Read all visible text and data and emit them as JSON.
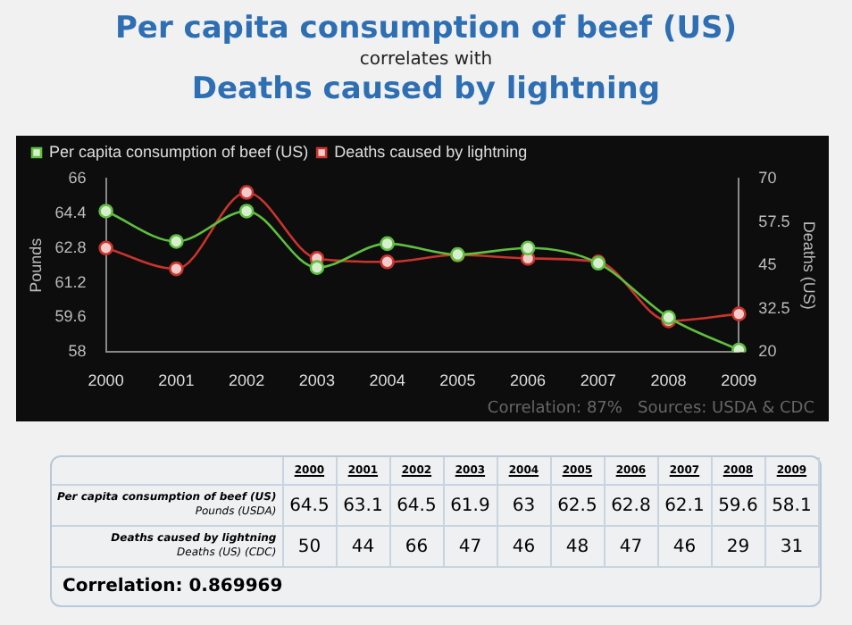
{
  "chart_data": [
    {
      "type": "line",
      "title": "Per capita consumption of beef (US)",
      "subtitle": "correlates with",
      "categories": [
        "2000",
        "2001",
        "2002",
        "2003",
        "2004",
        "2005",
        "2006",
        "2007",
        "2008",
        "2009"
      ],
      "series": [
        {
          "name": "Per capita consumption of beef (US)",
          "color": "#5fbf3f",
          "values": [
            64.5,
            63.1,
            64.5,
            61.9,
            63,
            62.5,
            62.8,
            62.1,
            59.6,
            58.1
          ]
        },
        {
          "name": "Deaths caused by lightning",
          "color": "#c9342c",
          "axis": "y2",
          "values": [
            50,
            44,
            66,
            47,
            46,
            48,
            47,
            46,
            29,
            31
          ]
        }
      ],
      "ylabel": "Pounds",
      "y2label": "Deaths (US)",
      "ylim": [
        58,
        66
      ],
      "yticks": [
        58,
        59.6,
        61.2,
        62.8,
        64.4,
        66
      ],
      "y2lim": [
        20,
        70
      ],
      "y2ticks": [
        20,
        32.5,
        45,
        57.5,
        70
      ],
      "grid": false,
      "legend": "top left",
      "marker": "circle",
      "line_style": "solid",
      "annotations": [
        "Deaths caused by lightning",
        "Correlation: 87%   Sources: USDA & CDC"
      ]
    },
    {
      "type": "heatmap",
      "categories": [
        "2000",
        "2001",
        "2002",
        "2003",
        "2004",
        "2005",
        "2006",
        "2007",
        "2008",
        "2009"
      ],
      "y_categories": [
        "Per capita consumption of beef (US)",
        "Deaths caused by lightning"
      ],
      "cells": [
        [
          64.5,
          63.1,
          64.5,
          61.9,
          63,
          62.5,
          62.8,
          62.1,
          59.6,
          58.1
        ],
        [
          50,
          44,
          66,
          47,
          46,
          48,
          47,
          46,
          29,
          31
        ]
      ],
      "data_labels": true,
      "annotations": [
        "Pounds (USDA)",
        "Deaths (US) (CDC)",
        "Correlation: 0.869969"
      ]
    }
  ]
}
